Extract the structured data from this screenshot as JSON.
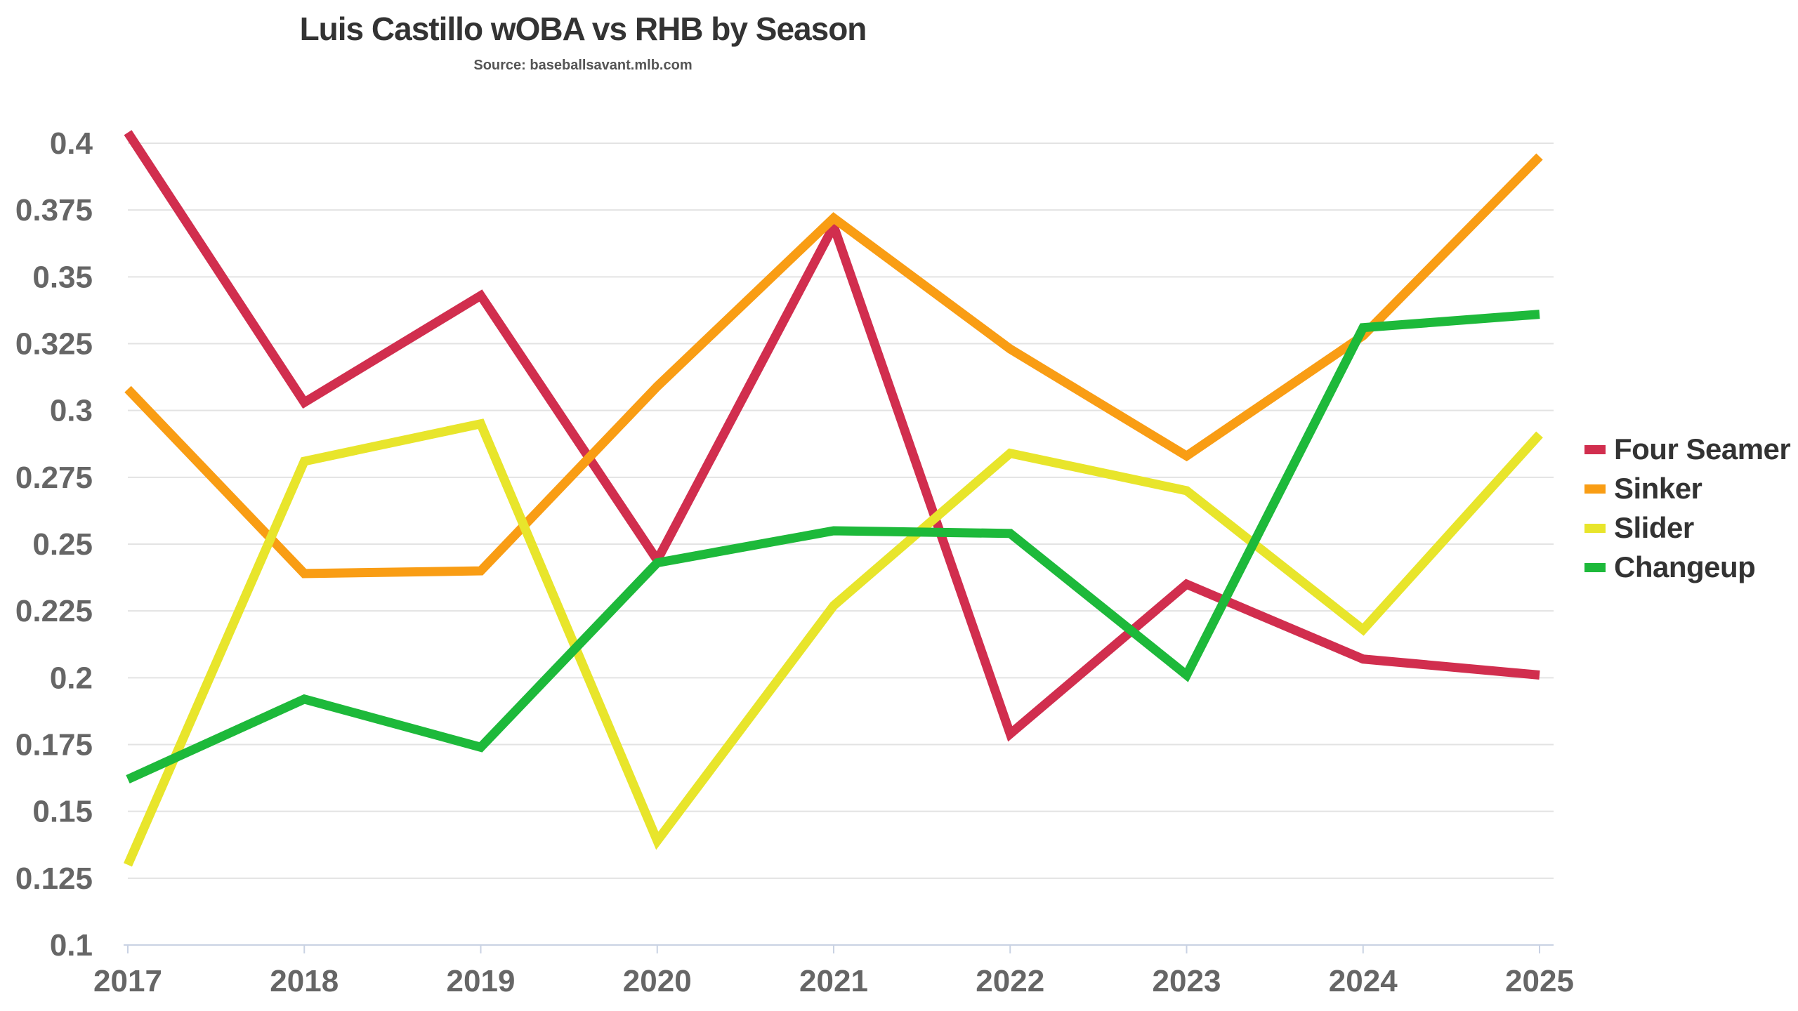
{
  "chart_data": {
    "type": "line",
    "title": "Luis Castillo wOBA vs RHB by Season",
    "subtitle": "Source: baseballsavant.mlb.com",
    "xlabel": "",
    "ylabel": "",
    "x": [
      "2017",
      "2018",
      "2019",
      "2020",
      "2021",
      "2022",
      "2023",
      "2024",
      "2025"
    ],
    "ylim": [
      0.1,
      0.4
    ],
    "yticks": [
      "0.1",
      "0.125",
      "0.15",
      "0.175",
      "0.2",
      "0.225",
      "0.25",
      "0.275",
      "0.3",
      "0.325",
      "0.35",
      "0.375",
      "0.4"
    ],
    "grid": true,
    "legend_position": "right",
    "series": [
      {
        "name": "Four Seamer",
        "color": "#D12E4E",
        "values": [
          0.404,
          0.303,
          0.343,
          0.244,
          0.369,
          0.179,
          0.235,
          0.207,
          0.201
        ]
      },
      {
        "name": "Sinker",
        "color": "#F99D14",
        "values": [
          0.308,
          0.239,
          0.24,
          0.309,
          0.372,
          0.323,
          0.283,
          0.328,
          0.395
        ]
      },
      {
        "name": "Slider",
        "color": "#E8E52B",
        "values": [
          0.13,
          0.281,
          0.295,
          0.139,
          0.227,
          0.284,
          0.27,
          0.218,
          0.291
        ]
      },
      {
        "name": "Changeup",
        "color": "#1DB93A",
        "values": [
          0.162,
          0.192,
          0.174,
          0.243,
          0.255,
          0.254,
          0.201,
          0.331,
          0.336
        ]
      }
    ]
  }
}
